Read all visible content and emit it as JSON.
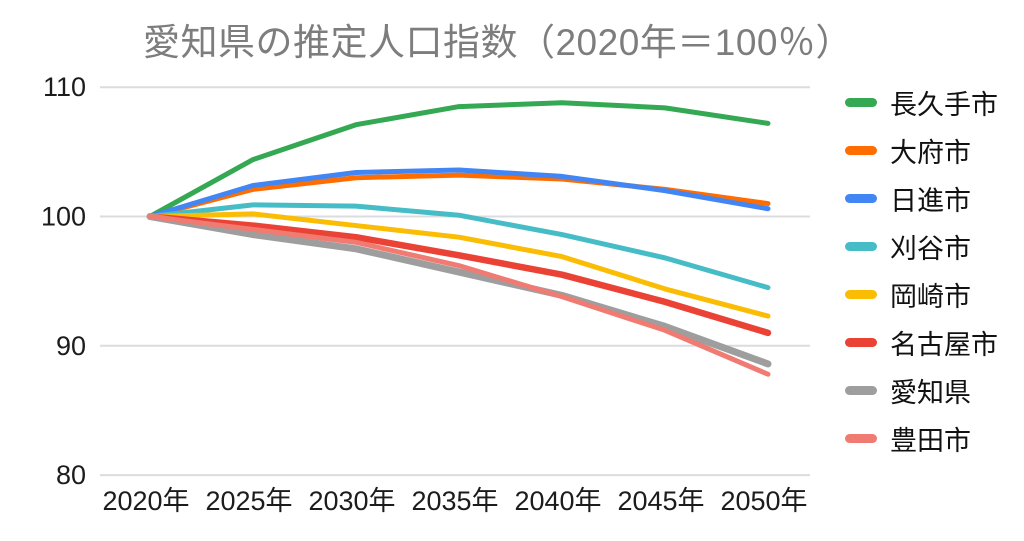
{
  "chart_data": {
    "type": "line",
    "title": "愛知県の推定人口指数（2020年＝100％）",
    "xlabel": "",
    "ylabel": "",
    "categories": [
      "2020年",
      "2025年",
      "2030年",
      "2035年",
      "2040年",
      "2045年",
      "2050年"
    ],
    "y_ticks": [
      110,
      100,
      90,
      80
    ],
    "ylim": [
      80,
      110
    ],
    "grid": "horizontal-only",
    "legend_position": "right",
    "series": [
      {
        "name": "長久手市",
        "color": "#34a853",
        "line_width": 5,
        "values": [
          100,
          104.4,
          107.1,
          108.5,
          108.8,
          108.4,
          107.2
        ]
      },
      {
        "name": "大府市",
        "color": "#ff6d01",
        "line_width": 5,
        "values": [
          100,
          102.1,
          103.0,
          103.2,
          102.9,
          102.1,
          101.0
        ]
      },
      {
        "name": "日進市",
        "color": "#4285f4",
        "line_width": 5,
        "values": [
          100,
          102.4,
          103.4,
          103.6,
          103.1,
          102.0,
          100.6
        ]
      },
      {
        "name": "刈谷市",
        "color": "#46bdc6",
        "line_width": 5,
        "values": [
          100,
          100.9,
          100.8,
          100.1,
          98.6,
          96.8,
          94.5
        ]
      },
      {
        "name": "岡崎市",
        "color": "#fbbc04",
        "line_width": 5,
        "values": [
          100,
          100.2,
          99.3,
          98.4,
          96.9,
          94.4,
          92.3
        ]
      },
      {
        "name": "名古屋市",
        "color": "#ea4335",
        "line_width": 6.5,
        "values": [
          100,
          99.3,
          98.4,
          97.0,
          95.5,
          93.4,
          91.0
        ]
      },
      {
        "name": "愛知県",
        "color": "#9e9e9e",
        "line_width": 7,
        "values": [
          100,
          98.6,
          97.5,
          95.7,
          93.9,
          91.5,
          88.6
        ]
      },
      {
        "name": "豊田市",
        "color": "#f07b72",
        "line_width": 5,
        "values": [
          100,
          99.0,
          98.0,
          96.2,
          93.8,
          91.2,
          87.8
        ]
      }
    ]
  },
  "colors": {
    "background": "#ffffff",
    "title_text": "#7d7d7d",
    "axis_text": "#1c1c1c",
    "gridline": "#dadce0"
  }
}
